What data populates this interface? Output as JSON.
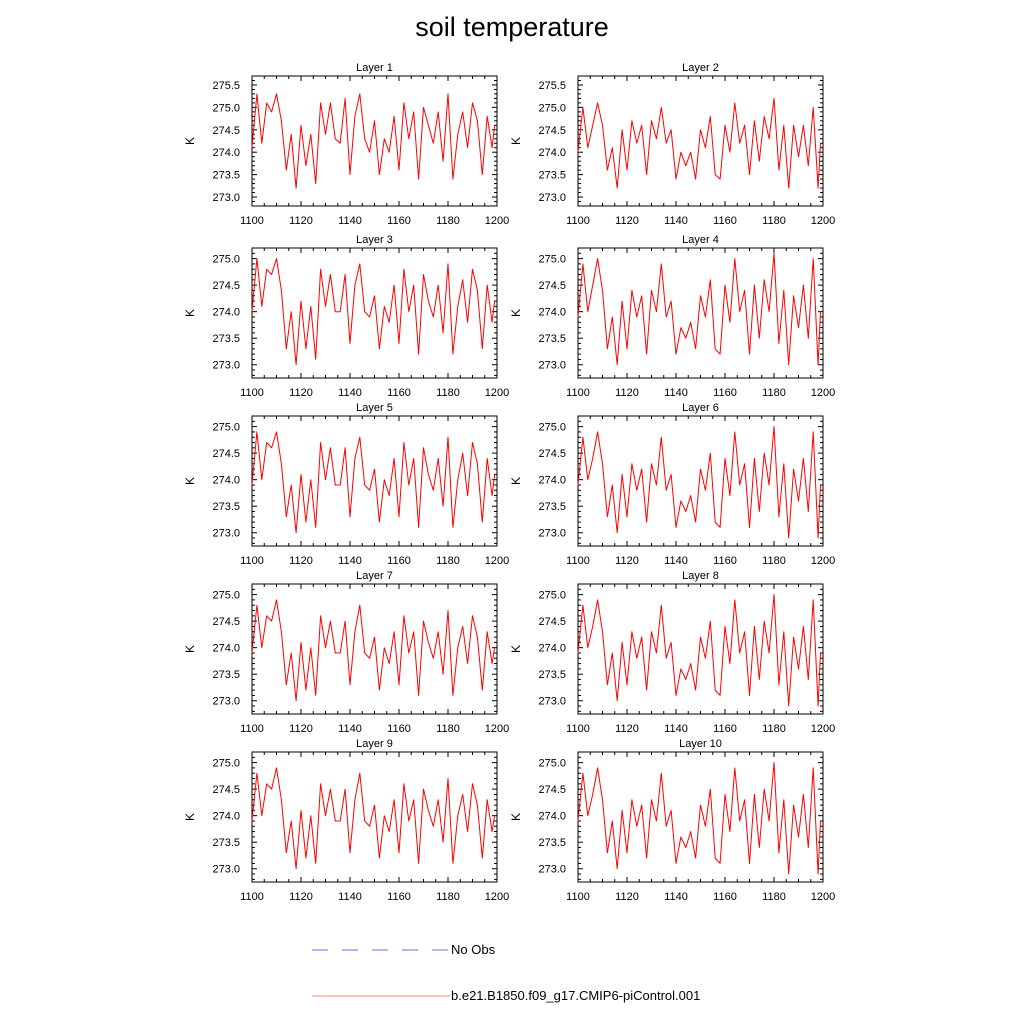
{
  "title": "soil temperature",
  "colors": {
    "model": "#ff0000",
    "obs": "#6f6fd8",
    "axis": "#000000"
  },
  "legend": {
    "obs_label": "No Obs",
    "model_label": "b.e21.B1850.f09_g17.CMIP6-piControl.001"
  },
  "chart_data": [
    {
      "type": "line",
      "title": "Layer 1",
      "ylabel": "K",
      "xlim": [
        1100,
        1200
      ],
      "ylim": [
        272.8,
        275.7
      ],
      "xticks": [
        "1100",
        "1120",
        "1140",
        "1160",
        "1180",
        "1200"
      ],
      "yticks": [
        "273.0",
        "273.5",
        "274.0",
        "274.5",
        "275.0",
        "275.5"
      ],
      "series": [
        {
          "name": "b.e21.B1850.f09_g17.CMIP6-piControl.001",
          "x_start": 1100,
          "x_step": 2,
          "values": [
            274.1,
            275.3,
            274.2,
            275.1,
            274.9,
            275.3,
            274.7,
            273.6,
            274.4,
            273.2,
            274.6,
            273.7,
            274.4,
            273.3,
            275.1,
            274.4,
            275.1,
            274.3,
            274.2,
            275.2,
            273.5,
            274.8,
            275.3,
            274.3,
            274.0,
            274.7,
            273.5,
            274.3,
            274.0,
            274.8,
            273.6,
            275.1,
            274.3,
            274.9,
            273.4,
            275.0,
            274.6,
            274.2,
            274.9,
            273.8,
            275.3,
            273.4,
            274.4,
            274.9,
            274.1,
            275.1,
            274.7,
            273.5,
            274.8,
            274.1,
            274.6
          ]
        }
      ]
    },
    {
      "type": "line",
      "title": "Layer 2",
      "ylabel": "K",
      "xlim": [
        1100,
        1200
      ],
      "ylim": [
        272.8,
        275.7
      ],
      "xticks": [
        "1100",
        "1120",
        "1140",
        "1160",
        "1180",
        "1200"
      ],
      "yticks": [
        "273.0",
        "273.5",
        "274.0",
        "274.5",
        "275.0",
        "275.5"
      ],
      "series": [
        {
          "name": "b.e21.B1850.f09_g17.CMIP6-piControl.001",
          "x_start": 1100,
          "x_step": 2,
          "values": [
            274.0,
            275.0,
            274.1,
            274.6,
            275.1,
            274.6,
            273.6,
            274.1,
            273.2,
            274.5,
            273.6,
            274.7,
            274.2,
            274.6,
            273.5,
            274.7,
            274.3,
            275.0,
            274.2,
            274.5,
            273.4,
            274.0,
            273.7,
            274.0,
            273.4,
            274.5,
            274.1,
            274.8,
            273.5,
            273.4,
            274.6,
            274.0,
            275.1,
            274.2,
            274.6,
            273.5,
            274.7,
            273.8,
            274.8,
            274.3,
            275.2,
            273.6,
            274.6,
            273.2,
            274.6,
            273.9,
            274.6,
            273.7,
            275.0,
            273.2,
            274.2
          ]
        }
      ]
    },
    {
      "type": "line",
      "title": "Layer 3",
      "ylabel": "K",
      "xlim": [
        1100,
        1200
      ],
      "ylim": [
        272.75,
        275.2
      ],
      "xticks": [
        "1100",
        "1120",
        "1140",
        "1160",
        "1180",
        "1200"
      ],
      "yticks": [
        "273.0",
        "273.5",
        "274.0",
        "274.5",
        "275.0"
      ],
      "series": [
        {
          "name": "b.e21.B1850.f09_g17.CMIP6-piControl.001",
          "x_start": 1100,
          "x_step": 2,
          "values": [
            274.0,
            275.0,
            274.1,
            274.8,
            274.7,
            275.0,
            274.4,
            273.3,
            274.0,
            273.0,
            274.2,
            273.3,
            274.1,
            273.1,
            274.8,
            274.1,
            274.7,
            274.0,
            274.0,
            274.7,
            273.4,
            274.5,
            274.9,
            274.0,
            273.9,
            274.3,
            273.3,
            274.1,
            273.8,
            274.5,
            273.4,
            274.8,
            274.0,
            274.5,
            273.2,
            274.7,
            274.2,
            273.9,
            274.5,
            273.6,
            274.9,
            273.2,
            274.1,
            274.6,
            273.8,
            274.8,
            274.4,
            273.3,
            274.5,
            273.8,
            274.2
          ]
        }
      ]
    },
    {
      "type": "line",
      "title": "Layer 4",
      "ylabel": "K",
      "xlim": [
        1100,
        1200
      ],
      "ylim": [
        272.75,
        275.2
      ],
      "xticks": [
        "1100",
        "1120",
        "1140",
        "1160",
        "1180",
        "1200"
      ],
      "yticks": [
        "273.0",
        "273.5",
        "274.0",
        "274.5",
        "275.0"
      ],
      "series": [
        {
          "name": "b.e21.B1850.f09_g17.CMIP6-piControl.001",
          "x_start": 1100,
          "x_step": 2,
          "values": [
            273.9,
            274.9,
            274.0,
            274.5,
            275.0,
            274.4,
            273.3,
            273.9,
            273.0,
            274.2,
            273.3,
            274.4,
            273.9,
            274.3,
            273.2,
            274.4,
            274.0,
            274.9,
            273.9,
            274.2,
            273.2,
            273.7,
            273.5,
            273.8,
            273.3,
            274.3,
            273.9,
            274.6,
            273.3,
            273.2,
            274.5,
            273.8,
            275.0,
            274.0,
            274.4,
            273.2,
            274.5,
            273.5,
            274.6,
            274.0,
            275.1,
            273.4,
            274.4,
            273.0,
            274.3,
            273.7,
            274.5,
            273.5,
            275.0,
            273.0,
            274.0
          ]
        }
      ]
    },
    {
      "type": "line",
      "title": "Layer 5",
      "ylabel": "K",
      "xlim": [
        1100,
        1200
      ],
      "ylim": [
        272.75,
        275.2
      ],
      "xticks": [
        "1100",
        "1120",
        "1140",
        "1160",
        "1180",
        "1200"
      ],
      "yticks": [
        "273.0",
        "273.5",
        "274.0",
        "274.5",
        "275.0"
      ],
      "series": [
        {
          "name": "b.e21.B1850.f09_g17.CMIP6-piControl.001",
          "x_start": 1100,
          "x_step": 2,
          "values": [
            273.9,
            274.9,
            274.0,
            274.7,
            274.6,
            274.9,
            274.3,
            273.3,
            273.9,
            273.0,
            274.1,
            273.2,
            274.0,
            273.1,
            274.7,
            274.0,
            274.6,
            273.9,
            273.9,
            274.6,
            273.3,
            274.4,
            274.8,
            273.9,
            273.8,
            274.2,
            273.2,
            274.0,
            273.7,
            274.4,
            273.3,
            274.7,
            273.9,
            274.4,
            273.1,
            274.6,
            274.1,
            273.8,
            274.4,
            273.5,
            274.8,
            273.1,
            274.0,
            274.5,
            273.7,
            274.7,
            274.3,
            273.2,
            274.4,
            273.7,
            274.1
          ]
        }
      ]
    },
    {
      "type": "line",
      "title": "Layer 6",
      "ylabel": "K",
      "xlim": [
        1100,
        1200
      ],
      "ylim": [
        272.75,
        275.2
      ],
      "xticks": [
        "1100",
        "1120",
        "1140",
        "1160",
        "1180",
        "1200"
      ],
      "yticks": [
        "273.0",
        "273.5",
        "274.0",
        "274.5",
        "275.0"
      ],
      "series": [
        {
          "name": "b.e21.B1850.f09_g17.CMIP6-piControl.001",
          "x_start": 1100,
          "x_step": 2,
          "values": [
            273.9,
            274.8,
            274.0,
            274.4,
            274.9,
            274.3,
            273.3,
            273.9,
            273.0,
            274.1,
            273.3,
            274.3,
            273.8,
            274.2,
            273.2,
            274.3,
            273.9,
            274.8,
            273.8,
            274.1,
            273.1,
            273.6,
            273.4,
            273.7,
            273.2,
            274.2,
            273.8,
            274.5,
            273.2,
            273.1,
            274.4,
            273.7,
            274.9,
            273.9,
            274.3,
            273.1,
            274.4,
            273.4,
            274.5,
            273.9,
            275.0,
            273.3,
            274.3,
            272.9,
            274.2,
            273.6,
            274.4,
            273.4,
            274.9,
            272.9,
            273.9
          ]
        }
      ]
    },
    {
      "type": "line",
      "title": "Layer 7",
      "ylabel": "K",
      "xlim": [
        1100,
        1200
      ],
      "ylim": [
        272.75,
        275.2
      ],
      "xticks": [
        "1100",
        "1120",
        "1140",
        "1160",
        "1180",
        "1200"
      ],
      "yticks": [
        "273.0",
        "273.5",
        "274.0",
        "274.5",
        "275.0"
      ],
      "series": [
        {
          "name": "b.e21.B1850.f09_g17.CMIP6-piControl.001",
          "x_start": 1100,
          "x_step": 2,
          "values": [
            273.9,
            274.8,
            274.0,
            274.6,
            274.5,
            274.9,
            274.3,
            273.3,
            273.9,
            273.0,
            274.1,
            273.2,
            274.0,
            273.1,
            274.6,
            274.0,
            274.5,
            273.9,
            273.9,
            274.5,
            273.3,
            274.3,
            274.8,
            273.9,
            273.8,
            274.2,
            273.2,
            274.0,
            273.7,
            274.3,
            273.3,
            274.6,
            273.9,
            274.3,
            273.1,
            274.5,
            274.1,
            273.8,
            274.3,
            273.5,
            274.7,
            273.1,
            274.0,
            274.4,
            273.7,
            274.6,
            274.2,
            273.2,
            274.3,
            273.7,
            274.0
          ]
        }
      ]
    },
    {
      "type": "line",
      "title": "Layer 8",
      "ylabel": "K",
      "xlim": [
        1100,
        1200
      ],
      "ylim": [
        272.75,
        275.2
      ],
      "xticks": [
        "1100",
        "1120",
        "1140",
        "1160",
        "1180",
        "1200"
      ],
      "yticks": [
        "273.0",
        "273.5",
        "274.0",
        "274.5",
        "275.0"
      ],
      "series": [
        {
          "name": "b.e21.B1850.f09_g17.CMIP6-piControl.001",
          "x_start": 1100,
          "x_step": 2,
          "values": [
            273.9,
            274.8,
            274.0,
            274.4,
            274.9,
            274.3,
            273.3,
            273.9,
            273.0,
            274.1,
            273.3,
            274.3,
            273.8,
            274.2,
            273.2,
            274.3,
            273.9,
            274.8,
            273.8,
            274.1,
            273.1,
            273.6,
            273.4,
            273.7,
            273.2,
            274.2,
            273.8,
            274.5,
            273.2,
            273.1,
            274.4,
            273.7,
            274.9,
            273.9,
            274.3,
            273.1,
            274.4,
            273.4,
            274.5,
            273.9,
            275.0,
            273.3,
            274.3,
            272.9,
            274.2,
            273.6,
            274.4,
            273.4,
            274.9,
            272.9,
            273.9
          ]
        }
      ]
    },
    {
      "type": "line",
      "title": "Layer 9",
      "ylabel": "K",
      "xlim": [
        1100,
        1200
      ],
      "ylim": [
        272.75,
        275.2
      ],
      "xticks": [
        "1100",
        "1120",
        "1140",
        "1160",
        "1180",
        "1200"
      ],
      "yticks": [
        "273.0",
        "273.5",
        "274.0",
        "274.5",
        "275.0"
      ],
      "series": [
        {
          "name": "b.e21.B1850.f09_g17.CMIP6-piControl.001",
          "x_start": 1100,
          "x_step": 2,
          "values": [
            273.9,
            274.8,
            274.0,
            274.6,
            274.5,
            274.9,
            274.3,
            273.3,
            273.9,
            273.0,
            274.1,
            273.2,
            274.0,
            273.1,
            274.6,
            274.0,
            274.5,
            273.9,
            273.9,
            274.5,
            273.3,
            274.3,
            274.8,
            273.9,
            273.8,
            274.2,
            273.2,
            274.0,
            273.7,
            274.3,
            273.3,
            274.6,
            273.9,
            274.3,
            273.1,
            274.5,
            274.1,
            273.8,
            274.3,
            273.5,
            274.7,
            273.1,
            274.0,
            274.4,
            273.7,
            274.6,
            274.2,
            273.2,
            274.3,
            273.7,
            274.0
          ]
        }
      ]
    },
    {
      "type": "line",
      "title": "Layer 10",
      "ylabel": "K",
      "xlim": [
        1100,
        1200
      ],
      "ylim": [
        272.75,
        275.2
      ],
      "xticks": [
        "1100",
        "1120",
        "1140",
        "1160",
        "1180",
        "1200"
      ],
      "yticks": [
        "273.0",
        "273.5",
        "274.0",
        "274.5",
        "275.0"
      ],
      "series": [
        {
          "name": "b.e21.B1850.f09_g17.CMIP6-piControl.001",
          "x_start": 1100,
          "x_step": 2,
          "values": [
            273.9,
            274.8,
            274.0,
            274.4,
            274.9,
            274.3,
            273.3,
            273.9,
            273.0,
            274.1,
            273.3,
            274.3,
            273.8,
            274.2,
            273.2,
            274.3,
            273.9,
            274.8,
            273.8,
            274.1,
            273.1,
            273.6,
            273.4,
            273.7,
            273.2,
            274.2,
            273.8,
            274.5,
            273.2,
            273.1,
            274.4,
            273.7,
            274.9,
            273.9,
            274.3,
            273.1,
            274.4,
            273.4,
            274.5,
            273.9,
            275.0,
            273.3,
            274.3,
            272.9,
            274.2,
            273.6,
            274.4,
            273.4,
            274.9,
            272.9,
            273.9
          ]
        }
      ]
    }
  ]
}
